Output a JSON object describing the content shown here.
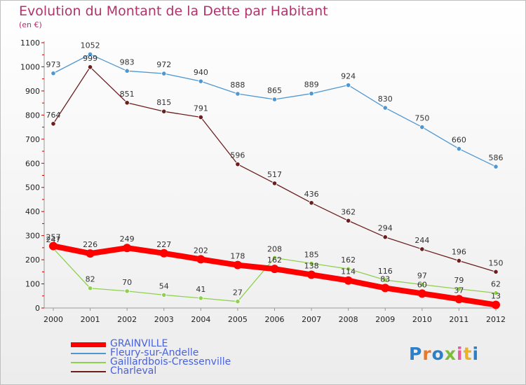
{
  "chart_data": {
    "type": "line",
    "title": "Evolution du Montant de la Dette par Habitant",
    "subtitle": "(en €)",
    "x": [
      2000,
      2001,
      2002,
      2003,
      2004,
      2005,
      2006,
      2007,
      2008,
      2009,
      2010,
      2011,
      2012
    ],
    "ylim": [
      0,
      1100
    ],
    "yticks": [
      0,
      100,
      200,
      300,
      400,
      500,
      600,
      700,
      800,
      900,
      1000,
      1100
    ],
    "grid": false,
    "legend_position": "bottom-left",
    "series": [
      {
        "name": "GRAINVILLE",
        "color": "#ff0000",
        "values": [
          257,
          226,
          249,
          227,
          202,
          178,
          162,
          138,
          114,
          83,
          60,
          37,
          13
        ]
      },
      {
        "name": "Fleury-sur-Andelle",
        "color": "#4f97d1",
        "values": [
          973,
          1052,
          983,
          972,
          940,
          888,
          865,
          889,
          924,
          830,
          750,
          660,
          586
        ]
      },
      {
        "name": "Gaillardbois-Cressenville",
        "color": "#8fd14f",
        "values": [
          247,
          82,
          70,
          54,
          41,
          27,
          208,
          185,
          162,
          116,
          97,
          79,
          62
        ]
      },
      {
        "name": "Charleval",
        "color": "#6b1e1e",
        "values": [
          764,
          999,
          851,
          815,
          791,
          596,
          517,
          436,
          362,
          294,
          244,
          196,
          150
        ]
      }
    ]
  },
  "logo": {
    "text": "Proxiti"
  }
}
